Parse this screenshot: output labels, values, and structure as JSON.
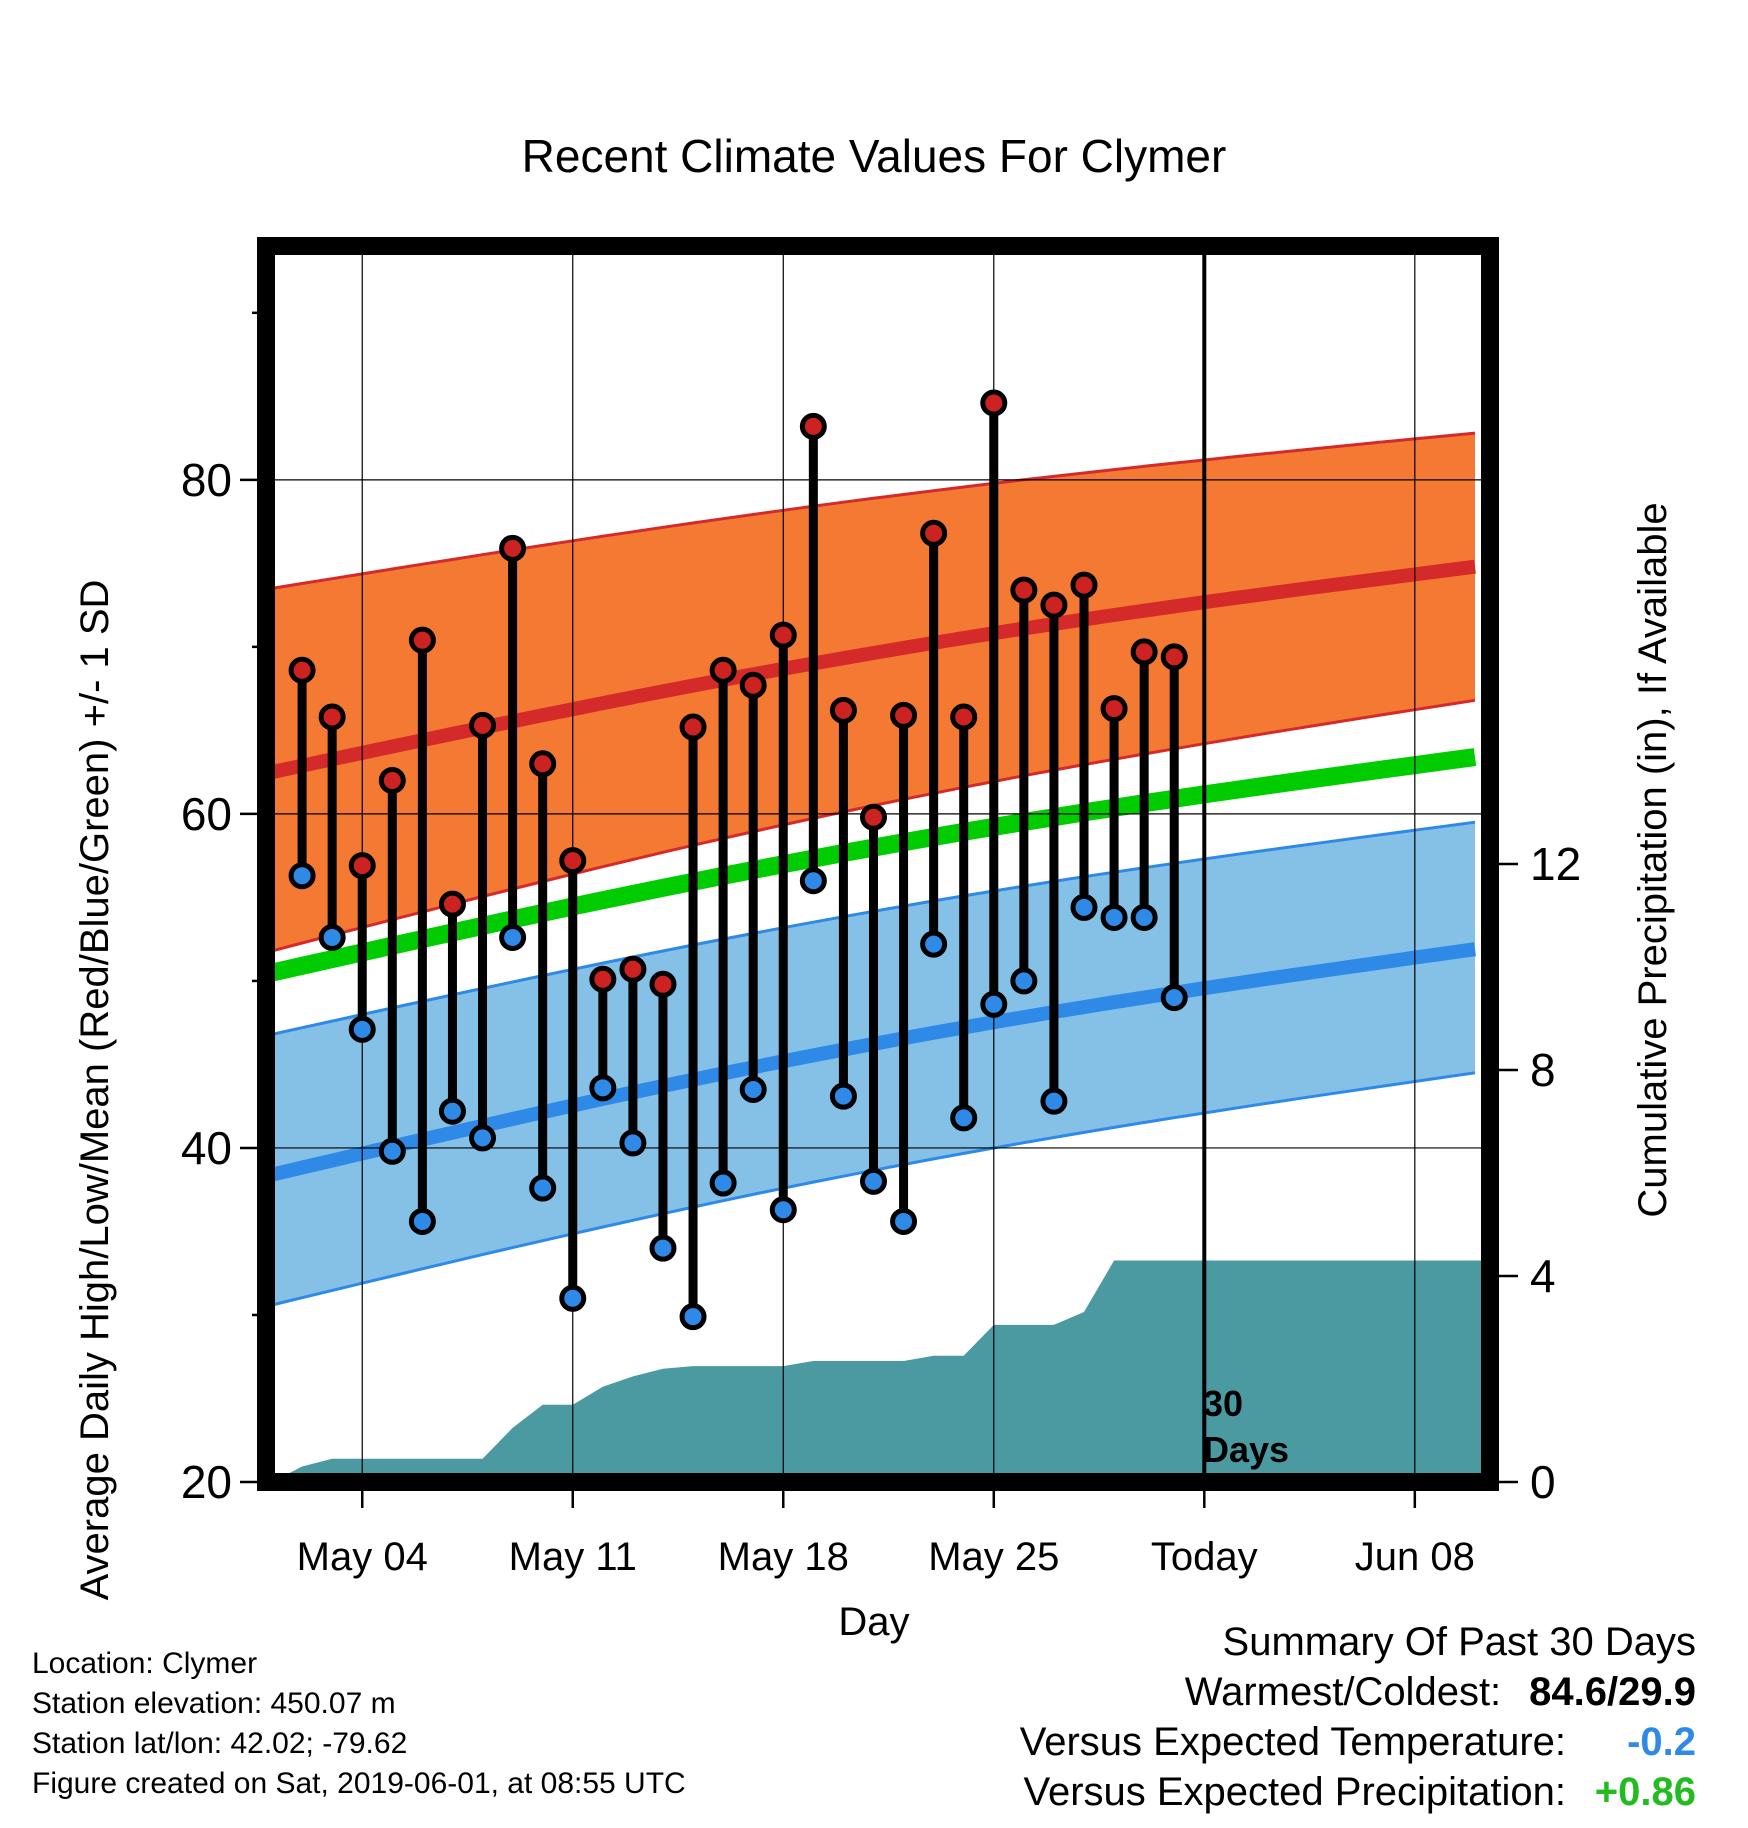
{
  "chart_data": {
    "type": "line",
    "title": "Recent Climate Values For Clymer",
    "xlabel": "Day",
    "ylabel": "Average Daily High/Low/Mean (Red/Blue/Green) +/- 1 SD",
    "y2label": "Cumulative Precipitation (in), If Available",
    "ylim": [
      20,
      94
    ],
    "y2lim": [
      0,
      24
    ],
    "y_ticks": [
      20,
      40,
      60,
      80
    ],
    "y2_ticks": [
      0,
      4,
      8,
      12
    ],
    "x_tick_labels": [
      {
        "day": 4,
        "label": "May 04"
      },
      {
        "day": 11,
        "label": "May 11"
      },
      {
        "day": 18,
        "label": "May 18"
      },
      {
        "day": 25,
        "label": "May 25"
      },
      {
        "day": 32,
        "label": "Today"
      },
      {
        "day": 39,
        "label": "Jun 08"
      }
    ],
    "x_range": [
      0.8,
      41.5
    ],
    "today_marker": {
      "day": 32,
      "label_line1": "30",
      "label_line2": "Days"
    },
    "colors": {
      "high_band": "#f47a33",
      "high_band_edge": "#d52a2a",
      "high_mean": "#d52a2a",
      "low_band": "#85c0e6",
      "low_band_edge": "#2e8ae6",
      "low_mean": "#2e8ae6",
      "mean": "#00cc00",
      "precip": "#4b9aa2",
      "high_dot": "#cc2222",
      "low_dot": "#2e8ae6"
    },
    "normals": {
      "days": [
        1,
        41
      ],
      "high_mean": [
        62.5,
        74.8
      ],
      "high_upper": [
        73.5,
        82.8
      ],
      "high_lower": [
        51.8,
        66.8
      ],
      "low_mean": [
        38.4,
        51.9
      ],
      "low_upper": [
        46.8,
        59.5
      ],
      "low_lower": [
        30.6,
        44.5
      ],
      "mean": [
        50.5,
        63.4
      ]
    },
    "series": [
      {
        "name": "High",
        "days": [
          2,
          3,
          4,
          5,
          6,
          7,
          8,
          9,
          10,
          11,
          12,
          13,
          14,
          15,
          16,
          17,
          18,
          19,
          20,
          21,
          22,
          23,
          24,
          25,
          26,
          27,
          28,
          29,
          30,
          31
        ],
        "values": [
          68.6,
          65.8,
          56.9,
          62.0,
          70.4,
          54.6,
          65.3,
          75.9,
          63.0,
          57.2,
          50.1,
          50.7,
          49.8,
          65.2,
          68.6,
          67.7,
          70.7,
          83.2,
          66.2,
          59.8,
          65.9,
          76.8,
          65.8,
          84.6,
          73.4,
          72.5,
          73.7,
          66.3,
          69.7,
          69.4
        ]
      },
      {
        "name": "Low",
        "days": [
          2,
          3,
          4,
          5,
          6,
          7,
          8,
          9,
          10,
          11,
          12,
          13,
          14,
          15,
          16,
          17,
          18,
          19,
          20,
          21,
          22,
          23,
          24,
          25,
          26,
          27,
          28,
          29,
          30,
          31
        ],
        "values": [
          56.3,
          52.6,
          47.1,
          39.8,
          35.6,
          42.2,
          40.6,
          52.6,
          37.6,
          31.0,
          43.6,
          40.3,
          34.0,
          29.9,
          37.9,
          43.5,
          36.3,
          56.0,
          43.1,
          38.0,
          35.6,
          52.2,
          41.8,
          48.6,
          50.0,
          42.8,
          54.4,
          53.8,
          53.8,
          49.0
        ]
      },
      {
        "name": "Cumulative Precipitation",
        "days": [
          1,
          2,
          3,
          4,
          5,
          6,
          7,
          8,
          9,
          10,
          11,
          12,
          13,
          14,
          15,
          16,
          17,
          18,
          19,
          20,
          21,
          22,
          23,
          24,
          25,
          26,
          27,
          28,
          29,
          30,
          31,
          32,
          41.4
        ],
        "values": [
          0,
          0.3,
          0.45,
          0.45,
          0.45,
          0.45,
          0.45,
          0.45,
          1.05,
          1.5,
          1.5,
          1.85,
          2.05,
          2.2,
          2.25,
          2.25,
          2.25,
          2.25,
          2.35,
          2.35,
          2.35,
          2.35,
          2.45,
          2.45,
          3.05,
          3.05,
          3.05,
          3.3,
          4.3,
          4.3,
          4.3,
          4.3,
          4.3
        ]
      }
    ]
  },
  "footer": {
    "location": "Location: Clymer",
    "elevation": "Station elevation: 450.07 m",
    "latlon": "Station lat/lon: 42.02; -79.62",
    "created": "Figure created on Sat, 2019-06-01, at 08:55 UTC"
  },
  "summary": {
    "heading": "Summary Of Past 30 Days",
    "warmest_label": "Warmest/Coldest:",
    "warmest_value": "84.6/29.9",
    "temp_label": "Versus Expected Temperature:",
    "temp_value": "-0.2",
    "temp_color": "#2e8ae6",
    "precip_label": "Versus Expected Precipitation:",
    "precip_value": "+0.86",
    "precip_color": "#22bb22"
  }
}
